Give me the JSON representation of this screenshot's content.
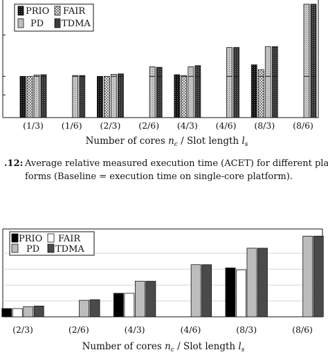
{
  "chart_data": [
    {
      "type": "bar",
      "categories": [
        "(1/3)",
        "(1/6)",
        "(2/3)",
        "(2/6)",
        "(4/3)",
        "(4/6)",
        "(8/3)",
        "(8/6)"
      ],
      "series": [
        {
          "name": "PRIO",
          "values": [
            1.0,
            null,
            1.0,
            null,
            1.04,
            null,
            1.28,
            null
          ]
        },
        {
          "name": "FAIR",
          "values": [
            1.0,
            null,
            1.0,
            null,
            1.02,
            null,
            1.16,
            null
          ]
        },
        {
          "name": "PD",
          "values": [
            1.03,
            1.02,
            1.05,
            1.23,
            1.23,
            1.7,
            1.72,
            2.75
          ]
        },
        {
          "name": "TDMA",
          "values": [
            1.04,
            1.02,
            1.06,
            1.22,
            1.26,
            1.7,
            1.72,
            2.75
          ]
        }
      ],
      "baseline": 1.0,
      "ylim": [
        0,
        2.8
      ],
      "xlabel": "Number of cores n_c / Slot length l_s",
      "legend_position": "top-left",
      "grid": false
    },
    {
      "type": "bar",
      "categories": [
        "(2/3)",
        "(2/6)",
        "(4/3)",
        "(4/6)",
        "(8/3)",
        "(8/6)"
      ],
      "series": [
        {
          "name": "PRIO",
          "values": [
            0.13,
            null,
            0.37,
            null,
            0.77,
            null
          ]
        },
        {
          "name": "FAIR",
          "values": [
            0.13,
            null,
            0.37,
            null,
            0.74,
            null
          ]
        },
        {
          "name": "PD",
          "values": [
            0.16,
            0.26,
            0.56,
            0.82,
            1.08,
            1.27
          ]
        },
        {
          "name": "TDMA",
          "values": [
            0.17,
            0.27,
            0.56,
            0.82,
            1.08,
            1.27
          ]
        }
      ],
      "ylim": [
        0,
        1.35
      ],
      "xlabel": "Number of cores n_c / Slot length l_s",
      "legend_position": "top-left",
      "grid": true
    }
  ],
  "caption": {
    "number": ".12:",
    "line1": "Average relative measured execution time (ACET) for different plat-",
    "line2": "forms (Baseline = execution time on single-core platform)."
  },
  "colors": {
    "PRIO": "#000000",
    "FAIR": "#ffffff",
    "PD": "#bdbdbd",
    "TDMA": "#4a4a4a"
  }
}
